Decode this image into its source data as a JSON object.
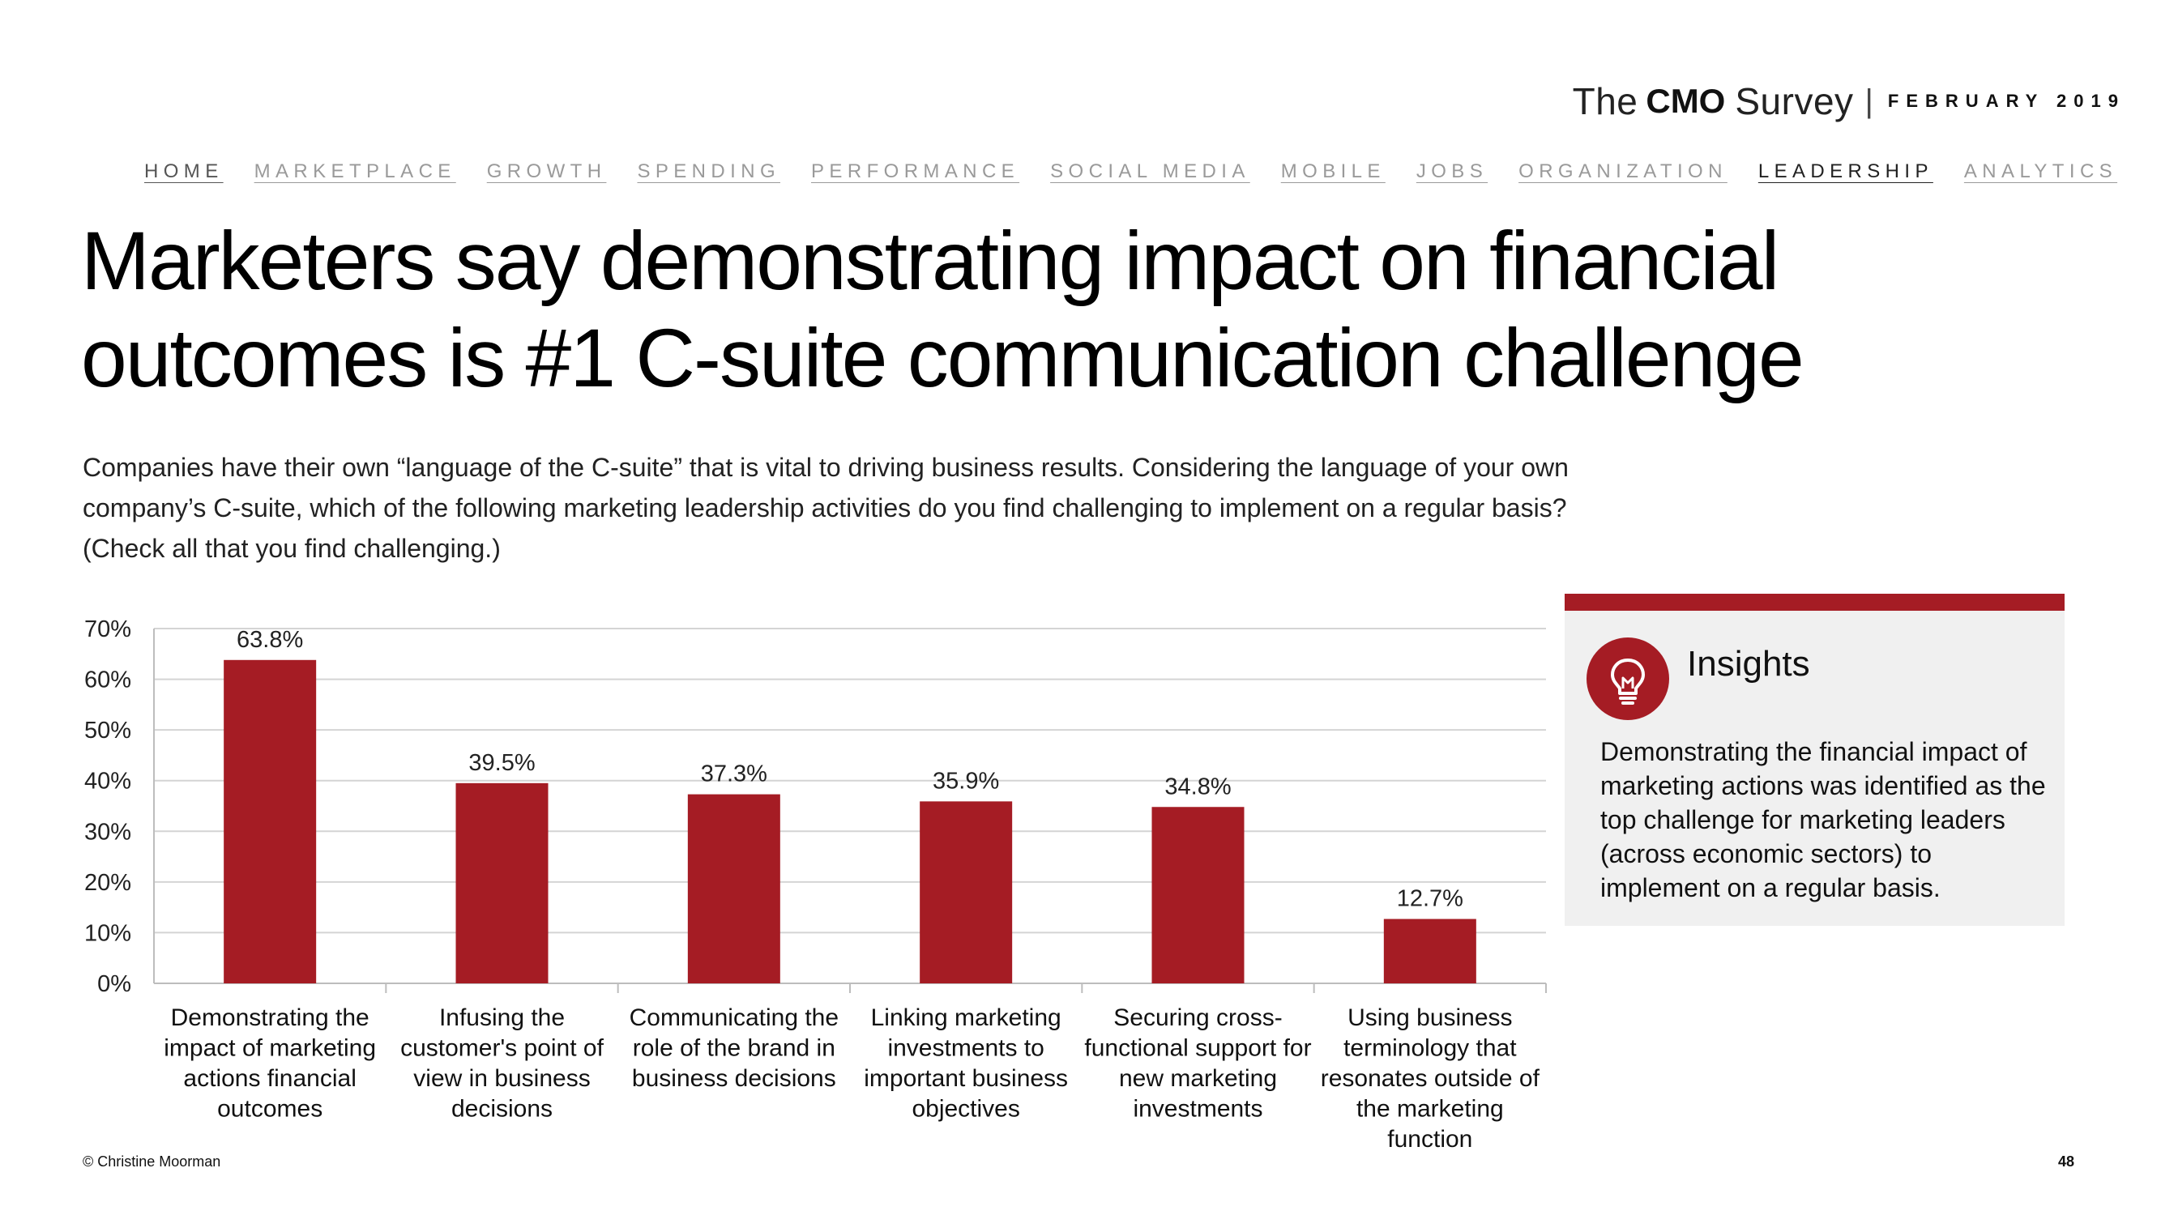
{
  "brand": {
    "the": "The",
    "cmo": "CMO",
    "survey": "Survey",
    "separator": "|",
    "date": "FEBRUARY 2019"
  },
  "nav": {
    "items": [
      "HOME",
      "MARKETPLACE",
      "GROWTH",
      "SPENDING",
      "PERFORMANCE",
      "SOCIAL MEDIA",
      "MOBILE",
      "JOBS",
      "ORGANIZATION",
      "LEADERSHIP",
      "ANALYTICS"
    ],
    "active": "LEADERSHIP"
  },
  "title": {
    "line1": "Marketers say demonstrating impact on financial",
    "line2": "outcomes is #1 C-suite communication challenge"
  },
  "question": "Companies have their own “language of the C-suite” that is vital to driving business results. Considering the language of your own company’s C-suite, which of the following marketing leadership activities do you find challenging to implement on a regular basis? (Check all that you find challenging.)",
  "chart_data": {
    "type": "bar",
    "categories": [
      [
        "Demonstrating the",
        "impact of marketing",
        "actions financial",
        "outcomes"
      ],
      [
        "Infusing the",
        "customer's point of",
        "view in business",
        "decisions"
      ],
      [
        "Communicating the",
        "role of the brand in",
        "business decisions"
      ],
      [
        "Linking marketing",
        "investments to",
        "important business",
        "objectives"
      ],
      [
        "Securing cross-",
        "functional support for",
        "new marketing",
        "investments"
      ],
      [
        "Using business",
        "terminology that",
        "resonates outside of",
        "the marketing",
        "function"
      ]
    ],
    "values": [
      63.8,
      39.5,
      37.3,
      35.9,
      34.8,
      12.7
    ],
    "value_labels": [
      "63.8%",
      "39.5%",
      "37.3%",
      "35.9%",
      "34.8%",
      "12.7%"
    ],
    "yticks": [
      "0%",
      "10%",
      "20%",
      "30%",
      "40%",
      "50%",
      "60%",
      "70%"
    ],
    "ylim": [
      0,
      70
    ],
    "grid": true,
    "bar_color": "#a51c24",
    "title": "",
    "xlabel": "",
    "ylabel": ""
  },
  "insights": {
    "icon": "lightbulb-icon",
    "title": "Insights",
    "body": "Demonstrating the financial impact of marketing actions was identified as the top challenge for marketing leaders (across economic sectors) to implement on a regular basis.",
    "accent": "#a51c24"
  },
  "footer": {
    "copyright": "© Christine Moorman",
    "page_number": "48"
  }
}
